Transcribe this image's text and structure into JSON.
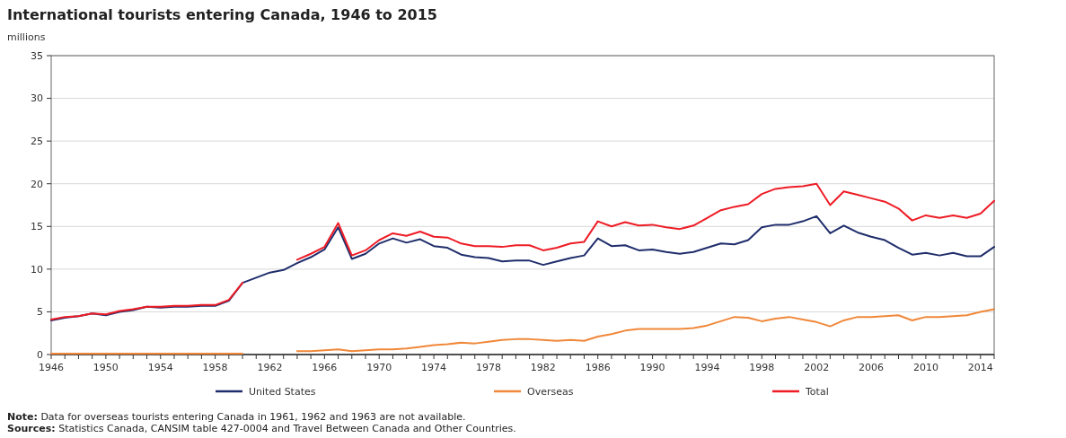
{
  "chart_data": {
    "type": "line",
    "title": "International tourists entering Canada, 1946 to 2015",
    "ylabel": "millions",
    "x": [
      1946,
      1947,
      1948,
      1949,
      1950,
      1951,
      1952,
      1953,
      1954,
      1955,
      1956,
      1957,
      1958,
      1959,
      1960,
      1961,
      1962,
      1963,
      1964,
      1965,
      1966,
      1967,
      1968,
      1969,
      1970,
      1971,
      1972,
      1973,
      1974,
      1975,
      1976,
      1977,
      1978,
      1979,
      1980,
      1981,
      1982,
      1983,
      1984,
      1985,
      1986,
      1987,
      1988,
      1989,
      1990,
      1991,
      1992,
      1993,
      1994,
      1995,
      1996,
      1997,
      1998,
      1999,
      2000,
      2001,
      2002,
      2003,
      2004,
      2005,
      2006,
      2007,
      2008,
      2009,
      2010,
      2011,
      2012,
      2013,
      2014,
      2015
    ],
    "series": [
      {
        "name": "United States",
        "color": "#1f2d6b",
        "values": [
          4.0,
          4.3,
          4.5,
          4.8,
          4.6,
          5.0,
          5.2,
          5.6,
          5.5,
          5.6,
          5.6,
          5.7,
          5.7,
          6.3,
          8.4,
          9.0,
          9.6,
          9.9,
          10.7,
          11.4,
          12.3,
          14.9,
          11.2,
          11.8,
          13.0,
          13.6,
          13.1,
          13.5,
          12.7,
          12.5,
          11.7,
          11.4,
          11.3,
          10.9,
          11.0,
          11.0,
          10.5,
          10.9,
          11.3,
          11.6,
          13.6,
          12.7,
          12.8,
          12.2,
          12.3,
          12.0,
          11.8,
          12.0,
          12.5,
          13.0,
          12.9,
          13.4,
          14.9,
          15.2,
          15.2,
          15.6,
          16.2,
          14.2,
          15.1,
          14.3,
          13.8,
          13.4,
          12.5,
          11.7,
          11.9,
          11.6,
          11.9,
          11.5,
          11.5,
          12.6
        ]
      },
      {
        "name": "Overseas",
        "color": "#f0883a",
        "values": [
          0.1,
          0.1,
          0.1,
          0.1,
          0.1,
          0.1,
          0.1,
          0.1,
          0.1,
          0.1,
          0.1,
          0.1,
          0.1,
          0.1,
          0.1,
          null,
          null,
          null,
          0.4,
          0.4,
          0.5,
          0.6,
          0.4,
          0.5,
          0.6,
          0.6,
          0.7,
          0.9,
          1.1,
          1.2,
          1.4,
          1.3,
          1.5,
          1.7,
          1.8,
          1.8,
          1.7,
          1.6,
          1.7,
          1.6,
          2.1,
          2.4,
          2.8,
          3.0,
          3.0,
          3.0,
          3.0,
          3.1,
          3.4,
          3.9,
          4.4,
          4.3,
          3.9,
          4.2,
          4.4,
          4.1,
          3.8,
          3.3,
          4.0,
          4.4,
          4.4,
          4.5,
          4.6,
          4.0,
          4.4,
          4.4,
          4.5,
          4.6,
          5.0,
          5.3
        ]
      },
      {
        "name": "Total",
        "color": "#ee1c25",
        "values": [
          4.1,
          4.4,
          4.5,
          4.8,
          4.7,
          5.1,
          5.3,
          5.6,
          5.6,
          5.7,
          5.7,
          5.8,
          5.8,
          6.4,
          8.4,
          null,
          null,
          null,
          11.1,
          11.8,
          12.6,
          15.4,
          11.6,
          12.2,
          13.4,
          14.2,
          13.9,
          14.4,
          13.8,
          13.7,
          13.0,
          12.7,
          12.7,
          12.6,
          12.8,
          12.8,
          12.2,
          12.5,
          13.0,
          13.2,
          15.6,
          15.0,
          15.5,
          15.1,
          15.2,
          14.9,
          14.7,
          15.1,
          16.0,
          16.9,
          17.3,
          17.6,
          18.8,
          19.4,
          19.6,
          19.7,
          20.0,
          17.5,
          19.1,
          18.7,
          18.3,
          17.9,
          17.1,
          15.7,
          16.3,
          16.0,
          16.3,
          16.0,
          16.5,
          18.0
        ]
      }
    ],
    "xlim": [
      1946,
      2015
    ],
    "xticks": [
      1946,
      {
        "value": 1947,
        "label": null
      },
      {
        "value": 1948,
        "label": null
      },
      {
        "value": 1949,
        "label": null
      },
      1950,
      {
        "value": 1951,
        "label": null
      },
      {
        "value": 1952,
        "label": null
      },
      {
        "value": 1953,
        "label": null
      },
      1954,
      {
        "value": 1955,
        "label": null
      },
      {
        "value": 1956,
        "label": null
      },
      {
        "value": 1957,
        "label": null
      },
      1958,
      {
        "value": 1959,
        "label": null
      },
      {
        "value": 1960,
        "label": null
      },
      {
        "value": 1961,
        "label": null
      },
      1962,
      {
        "value": 1963,
        "label": null
      },
      {
        "value": 1964,
        "label": null
      },
      {
        "value": 1965,
        "label": null
      },
      1966,
      {
        "value": 1967,
        "label": null
      },
      {
        "value": 1968,
        "label": null
      },
      {
        "value": 1969,
        "label": null
      },
      1970,
      {
        "value": 1971,
        "label": null
      },
      {
        "value": 1972,
        "label": null
      },
      {
        "value": 1973,
        "label": null
      },
      1974,
      {
        "value": 1975,
        "label": null
      },
      {
        "value": 1976,
        "label": null
      },
      {
        "value": 1977,
        "label": null
      },
      1978,
      {
        "value": 1979,
        "label": null
      },
      {
        "value": 1980,
        "label": null
      },
      {
        "value": 1981,
        "label": null
      },
      1982,
      {
        "value": 1983,
        "label": null
      },
      {
        "value": 1984,
        "label": null
      },
      {
        "value": 1985,
        "label": null
      },
      1986,
      {
        "value": 1987,
        "label": null
      },
      {
        "value": 1988,
        "label": null
      },
      {
        "value": 1989,
        "label": null
      },
      1990,
      {
        "value": 1991,
        "label": null
      },
      {
        "value": 1992,
        "label": null
      },
      {
        "value": 1993,
        "label": null
      },
      1994,
      {
        "value": 1995,
        "label": null
      },
      {
        "value": 1996,
        "label": null
      },
      {
        "value": 1997,
        "label": null
      },
      1998,
      {
        "value": 1999,
        "label": null
      },
      {
        "value": 2000,
        "label": null
      },
      {
        "value": 2001,
        "label": null
      },
      2002,
      {
        "value": 2003,
        "label": null
      },
      {
        "value": 2004,
        "label": null
      },
      {
        "value": 2005,
        "label": null
      },
      2006,
      {
        "value": 2007,
        "label": null
      },
      {
        "value": 2008,
        "label": null
      },
      {
        "value": 2009,
        "label": null
      },
      2010,
      {
        "value": 2011,
        "label": null
      },
      {
        "value": 2012,
        "label": null
      },
      {
        "value": 2013,
        "label": null
      },
      2014,
      {
        "value": 2015,
        "label": null
      }
    ],
    "ylim": [
      0,
      35
    ],
    "yticks": [
      0,
      5,
      10,
      15,
      20,
      25,
      30,
      35
    ],
    "grid": "y",
    "legend": "bottom",
    "marker": "none",
    "line_style": "solid",
    "annotations": [
      "Note: Data for overseas tourists entering Canada in 1961, 1962 and 1963 are not available.",
      "Sources: Statistics Canada, CANSIM table 427-0004 and Travel Between Canada and Other Countries."
    ]
  }
}
